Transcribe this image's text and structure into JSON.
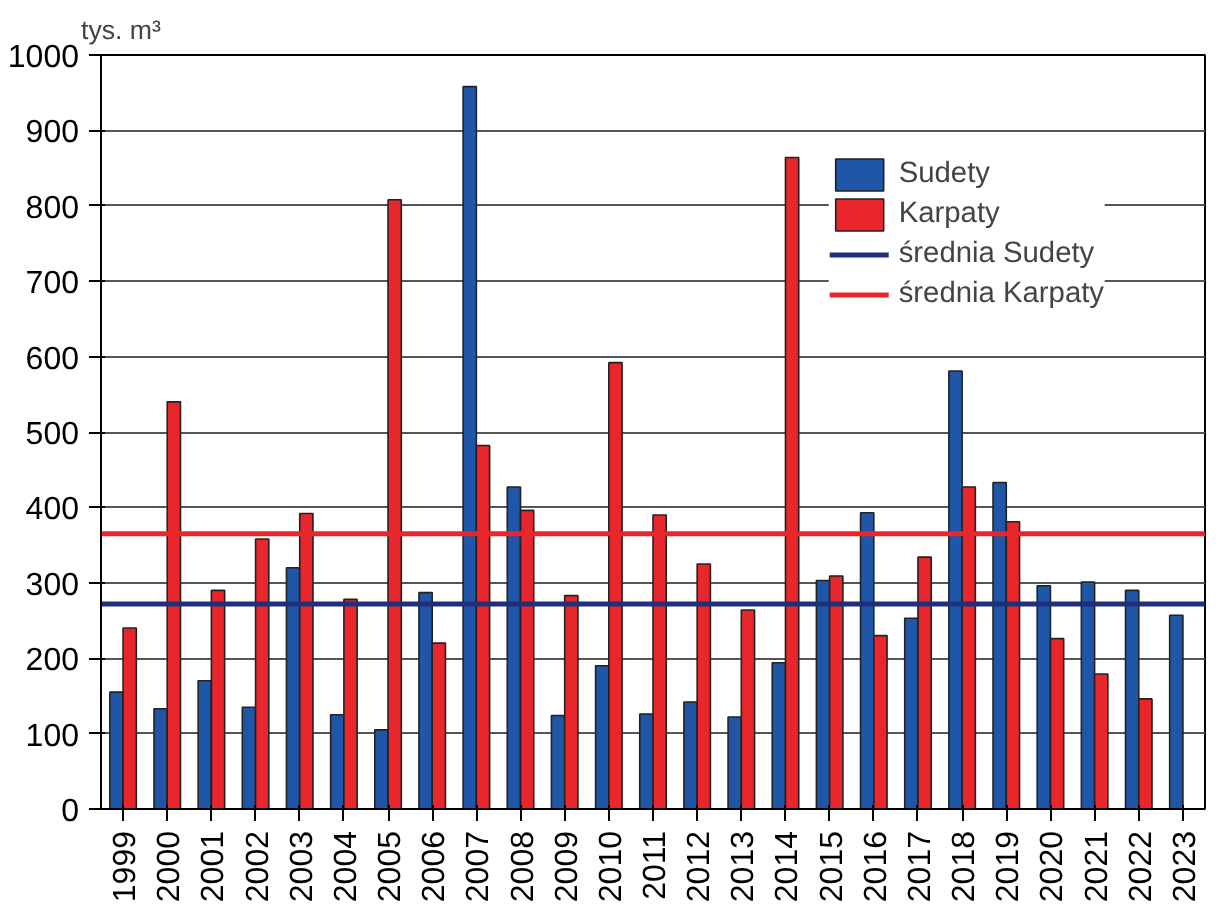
{
  "chart_data": {
    "type": "bar",
    "ylabel": "tys. m³",
    "categories": [
      "1999",
      "2000",
      "2001",
      "2002",
      "2003",
      "2004",
      "2005",
      "2006",
      "2007",
      "2008",
      "2009",
      "2010",
      "2011",
      "2012",
      "2013",
      "2014",
      "2015",
      "2016",
      "2017",
      "2018",
      "2019",
      "2020",
      "2021",
      "2022",
      "2023"
    ],
    "series": [
      {
        "name": "Sudety",
        "color": "#1f56a8",
        "values": [
          155,
          133,
          170,
          135,
          320,
          125,
          105,
          287,
          958,
          427,
          124,
          190,
          126,
          142,
          122,
          194,
          303,
          393,
          253,
          581,
          433,
          296,
          301,
          290,
          257
        ]
      },
      {
        "name": "Karpaty",
        "color": "#e8262b",
        "values": [
          240,
          540,
          290,
          358,
          392,
          278,
          808,
          220,
          482,
          396,
          283,
          592,
          390,
          325,
          264,
          864,
          309,
          230,
          334,
          427,
          381,
          226,
          179,
          146,
          null
        ]
      }
    ],
    "ref_lines": [
      {
        "axis": "y",
        "value": 272,
        "label": "średnia Sudety",
        "color": "#1f2f7a"
      },
      {
        "axis": "y",
        "value": 365,
        "label": "średnia Karpaty",
        "color": "#e8262b"
      }
    ],
    "ylim": [
      0,
      1000
    ],
    "yticks": [
      0,
      100,
      200,
      300,
      400,
      500,
      600,
      700,
      800,
      900,
      1000
    ],
    "grid": "y",
    "legend": "top right"
  }
}
